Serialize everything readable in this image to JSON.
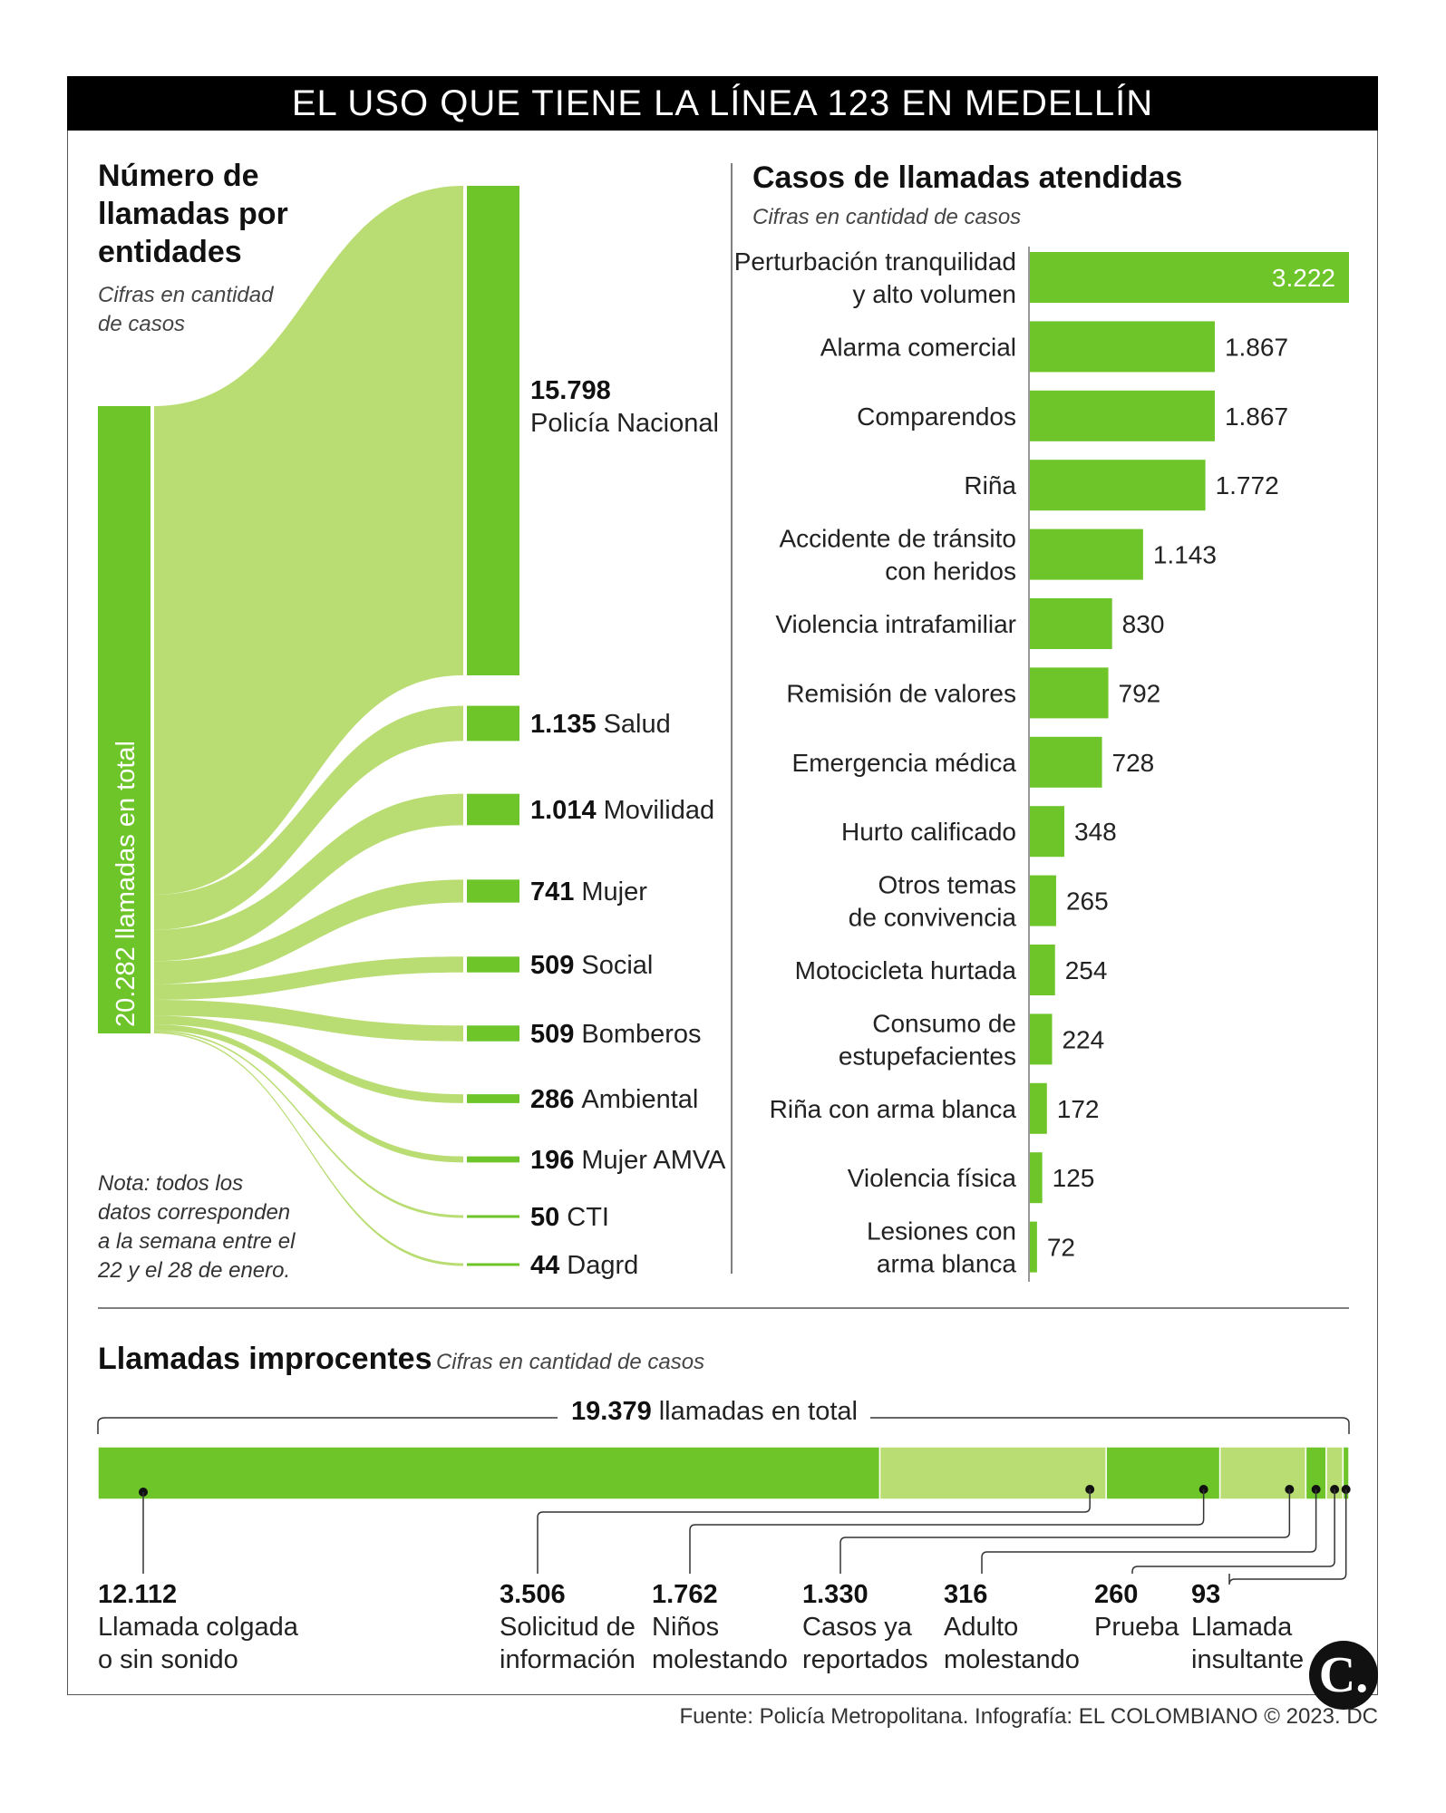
{
  "header": {
    "title": "EL USO QUE TIENE LA LÍNEA 123 EN MEDELLÍN"
  },
  "colors": {
    "bar": "#6dc52a",
    "flow": "#b9dd73",
    "black": "#000000"
  },
  "entities_section": {
    "title_lines": [
      "Número de",
      "llamadas por",
      "entidades"
    ],
    "subtitle_lines": [
      "Cifras en cantidad",
      "de casos"
    ],
    "total_label": "20.282 llamadas en total",
    "note_lines": [
      "Nota: todos los",
      "datos corresponden",
      "a la semana entre el",
      "22 y el 28 de enero."
    ]
  },
  "cases_section": {
    "title": "Casos de llamadas atendidas",
    "subtitle": "Cifras en cantidad de casos"
  },
  "improper_section": {
    "title": "Llamadas improcentes",
    "subtitle": "Cifras en cantidad de casos",
    "total_value": "19.379",
    "total_label": "llamadas en total"
  },
  "footer": {
    "source": "Fuente: Policía Metropolitana. Infografía: EL COLOMBIANO © 2023. DC",
    "logo": "C."
  },
  "chart_data": [
    {
      "type": "sankey",
      "title": "Número de llamadas por entidades",
      "total": 20282,
      "categories": [
        "Policía Nacional",
        "Salud",
        "Movilidad",
        "Mujer",
        "Social",
        "Bomberos",
        "Ambiental",
        "Mujer AMVA",
        "CTI",
        "Dagrd"
      ],
      "values": [
        15798,
        1135,
        1014,
        741,
        509,
        509,
        286,
        196,
        50,
        44
      ],
      "value_labels": [
        "15.798",
        "1.135",
        "1.014",
        "741",
        "509",
        "509",
        "286",
        "196",
        "50",
        "44"
      ]
    },
    {
      "type": "bar",
      "orientation": "horizontal",
      "title": "Casos de llamadas atendidas",
      "categories": [
        [
          "Perturbación tranquilidad",
          "y alto volumen"
        ],
        [
          "Alarma comercial"
        ],
        [
          "Comparendos"
        ],
        [
          "Riña"
        ],
        [
          "Accidente de tránsito",
          "con heridos"
        ],
        [
          "Violencia intrafamiliar"
        ],
        [
          "Remisión de valores"
        ],
        [
          "Emergencia médica"
        ],
        [
          "Hurto calificado"
        ],
        [
          "Otros temas",
          "de convivencia"
        ],
        [
          "Motocicleta hurtada"
        ],
        [
          "Consumo de",
          "estupefacientes"
        ],
        [
          "Riña con arma blanca"
        ],
        [
          "Violencia física"
        ],
        [
          "Lesiones con",
          "arma blanca"
        ]
      ],
      "values": [
        3222,
        1867,
        1867,
        1772,
        1143,
        830,
        792,
        728,
        348,
        265,
        254,
        224,
        172,
        125,
        72
      ],
      "value_labels": [
        "3.222",
        "1.867",
        "1.867",
        "1.772",
        "1.143",
        "830",
        "792",
        "728",
        "348",
        "265",
        "254",
        "224",
        "172",
        "125",
        "72"
      ],
      "xlim": [
        0,
        3222
      ]
    },
    {
      "type": "stacked-bar",
      "title": "Llamadas improcentes",
      "total": 19379,
      "categories": [
        [
          "Llamada colgada",
          "o sin sonido"
        ],
        [
          "Solicitud de",
          "información"
        ],
        [
          "Niños",
          "molestando"
        ],
        [
          "Casos ya",
          "reportados"
        ],
        [
          "Adulto",
          "molestando"
        ],
        [
          "Prueba"
        ],
        [
          "Llamada",
          "insultante"
        ]
      ],
      "values": [
        12112,
        3506,
        1762,
        1330,
        316,
        260,
        93
      ],
      "value_labels": [
        "12.112",
        "3.506",
        "1.762",
        "1.330",
        "316",
        "260",
        "93"
      ]
    }
  ]
}
